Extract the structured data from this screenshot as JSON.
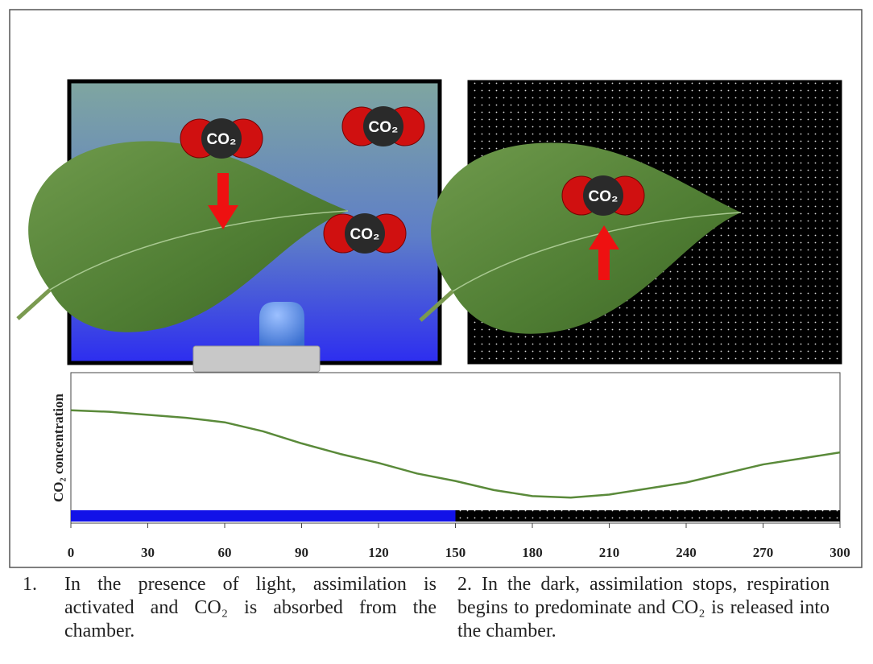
{
  "chart_data": {
    "type": "line",
    "ylabel": "CO₂ concentration",
    "x": [
      0,
      15,
      30,
      45,
      60,
      75,
      90,
      105,
      120,
      135,
      150,
      165,
      180,
      195,
      210,
      225,
      240,
      255,
      270,
      285,
      300
    ],
    "series": [
      {
        "color": "#5a8a3a",
        "values": [
          75,
          74,
          72,
          70,
          67,
          61,
          53,
          46,
          40,
          33,
          28,
          22,
          18,
          17,
          19,
          23,
          27,
          33,
          39,
          43,
          47
        ]
      }
    ],
    "xlim": [
      0,
      300
    ],
    "xticks": [
      0,
      30,
      60,
      90,
      120,
      150,
      180,
      210,
      240,
      270,
      300
    ],
    "ylim": [
      0,
      100
    ],
    "phases": [
      {
        "start": 0,
        "end": 150,
        "color": "#1212e8"
      },
      {
        "start": 150,
        "end": 300,
        "color": "#000000"
      }
    ]
  },
  "illustration": {
    "molecules": [
      "CO₂",
      "CO₂",
      "CO₂",
      "CO₂"
    ]
  },
  "captions": [
    {
      "number": "1.",
      "text": "In the presence of light, assimilation is activated and CO₂ is absorbed from the chamber."
    },
    {
      "number": "2.",
      "text": "In the dark, assimilation stops, respiration begins to predominate and CO₂ is released into the chamber."
    }
  ]
}
